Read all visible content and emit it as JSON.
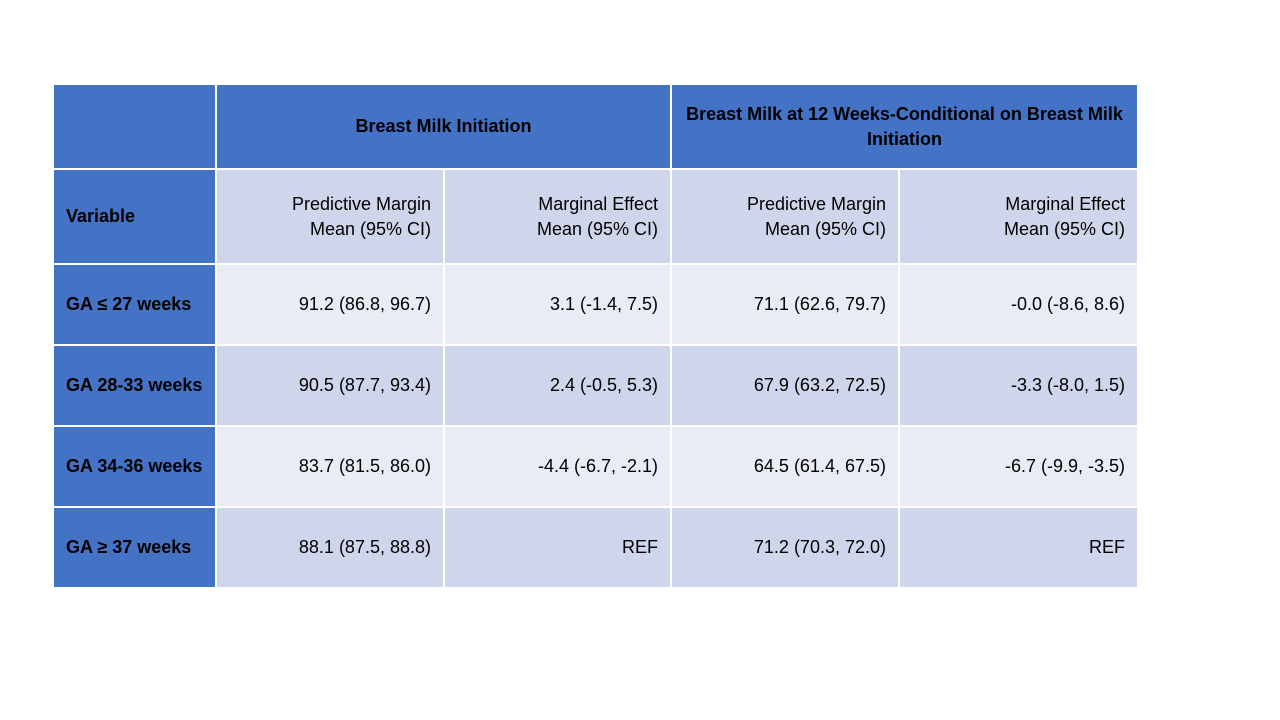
{
  "header": {
    "group_1": "Breast Milk Initiation",
    "group_2": "Breast Milk at 12 Weeks-Conditional  on Breast Milk Initiation"
  },
  "subheader": {
    "variable": "Variable",
    "columns": [
      [
        "Predictive Margin",
        "Mean (95% CI)"
      ],
      [
        "Marginal Effect",
        "Mean (95% CI)"
      ],
      [
        "Predictive Margin",
        "Mean (95% CI)"
      ],
      [
        "Marginal Effect",
        "Mean (95% CI)"
      ]
    ]
  },
  "rows": [
    {
      "label": "GA ≤ 27 weeks",
      "values": [
        "91.2 (86.8, 96.7)",
        "3.1 (-1.4, 7.5)",
        "71.1 (62.6, 79.7)",
        "-0.0 (-8.6, 8.6)"
      ]
    },
    {
      "label": "GA 28-33 weeks",
      "values": [
        "90.5 (87.7, 93.4)",
        "2.4 (-0.5, 5.3)",
        "67.9 (63.2, 72.5)",
        "-3.3 (-8.0, 1.5)"
      ]
    },
    {
      "label": "GA 34-36 weeks",
      "values": [
        "83.7 (81.5, 86.0)",
        "-4.4 (-6.7, -2.1)",
        "64.5 (61.4, 67.5)",
        "-6.7 (-9.9, -3.5)"
      ]
    },
    {
      "label": "GA ≥ 37 weeks",
      "values": [
        "88.1 (87.5, 88.8)",
        "REF",
        "71.2 (70.3, 72.0)",
        "REF"
      ]
    }
  ],
  "colors": {
    "header_blue": "#4472c4",
    "band_dark": "#cfd5ea",
    "band_light": "#e9ebf5"
  }
}
